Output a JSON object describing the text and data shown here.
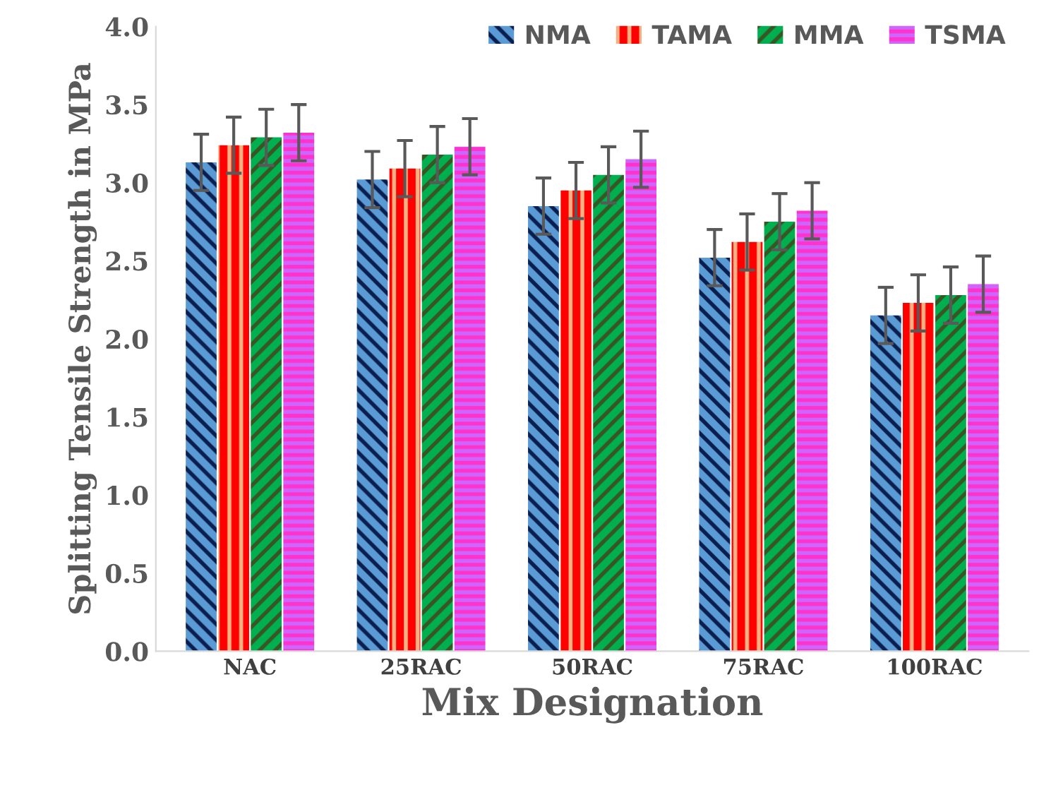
{
  "chart_data": {
    "type": "bar",
    "xlabel": "Mix Designation",
    "ylabel": "Splitting Tensile Strength in MPa",
    "categories": [
      "NAC",
      "25RAC",
      "50RAC",
      "75RAC",
      "100RAC"
    ],
    "series": [
      {
        "name": "NMA",
        "color": "#5b9bd5",
        "values": [
          3.13,
          3.02,
          2.85,
          2.52,
          2.15
        ],
        "errors": [
          0.18,
          0.18,
          0.18,
          0.18,
          0.18
        ]
      },
      {
        "name": "TAMA",
        "color": "#ff0000",
        "values": [
          3.24,
          3.09,
          2.95,
          2.62,
          2.23
        ],
        "errors": [
          0.18,
          0.18,
          0.18,
          0.18,
          0.18
        ]
      },
      {
        "name": "MMA",
        "color": "#00b050",
        "values": [
          3.29,
          3.18,
          3.05,
          2.75,
          2.28
        ],
        "errors": [
          0.18,
          0.18,
          0.18,
          0.18,
          0.18
        ]
      },
      {
        "name": "TSMA",
        "color": "#ff33cc",
        "values": [
          3.32,
          3.23,
          3.15,
          2.82,
          2.35
        ],
        "errors": [
          0.18,
          0.18,
          0.18,
          0.18,
          0.18
        ]
      }
    ],
    "ylim": [
      0,
      4
    ],
    "yticks": [
      {
        "value": 0,
        "label": "0.0"
      },
      {
        "value": 0.5,
        "label": "0.5"
      },
      {
        "value": 1,
        "label": "1.0"
      },
      {
        "value": 1.5,
        "label": "1.5"
      },
      {
        "value": 2,
        "label": "2.0"
      },
      {
        "value": 2.5,
        "label": "2.5"
      },
      {
        "value": 3,
        "label": "3.0"
      },
      {
        "value": 3.5,
        "label": "3.5"
      },
      {
        "value": 4,
        "label": "4.0"
      }
    ],
    "grid": false,
    "legend": "top right"
  }
}
